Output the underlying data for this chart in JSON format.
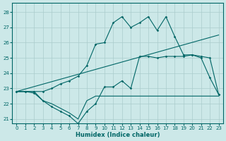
{
  "bg_color": "#cce8e8",
  "grid_color": "#aacccc",
  "line_color": "#006666",
  "xlabel": "Humidex (Indice chaleur)",
  "xlim": [
    -0.5,
    23.5
  ],
  "ylim": [
    20.7,
    28.6
  ],
  "xticks": [
    0,
    1,
    2,
    3,
    4,
    5,
    6,
    7,
    8,
    9,
    10,
    11,
    12,
    13,
    14,
    15,
    16,
    17,
    18,
    19,
    20,
    21,
    22,
    23
  ],
  "yticks": [
    21,
    22,
    23,
    24,
    25,
    26,
    27,
    28
  ],
  "line1_x": [
    0,
    1,
    2,
    3,
    4,
    5,
    6,
    7,
    8,
    9,
    10,
    11,
    12,
    13,
    14,
    15,
    16,
    17,
    18,
    19,
    20,
    21,
    22,
    23
  ],
  "line1_y": [
    22.8,
    22.8,
    22.8,
    22.2,
    22.0,
    21.7,
    21.4,
    21.0,
    22.2,
    22.5,
    22.5,
    22.5,
    22.5,
    22.5,
    22.5,
    22.5,
    22.5,
    22.5,
    22.5,
    22.5,
    22.5,
    22.5,
    22.5,
    22.5
  ],
  "line2_x": [
    0,
    1,
    2,
    3,
    4,
    5,
    6,
    7,
    8,
    9,
    10,
    11,
    12,
    13,
    14,
    15,
    16,
    17,
    18,
    19,
    20,
    21,
    22,
    23
  ],
  "line2_y": [
    22.8,
    22.8,
    22.7,
    22.2,
    21.8,
    21.5,
    21.2,
    20.7,
    21.5,
    22.0,
    23.1,
    23.1,
    23.5,
    23.0,
    25.1,
    25.1,
    25.0,
    25.1,
    25.1,
    25.1,
    25.2,
    25.0,
    23.7,
    22.6
  ],
  "line3_x": [
    0,
    23
  ],
  "line3_y": [
    22.8,
    26.5
  ],
  "line4_x": [
    0,
    1,
    2,
    3,
    4,
    5,
    6,
    7,
    8,
    9,
    10,
    11,
    12,
    13,
    14,
    15,
    16,
    17,
    18,
    19,
    20,
    21,
    22,
    23
  ],
  "line4_y": [
    22.8,
    22.8,
    22.8,
    22.8,
    23.0,
    23.3,
    23.5,
    23.8,
    24.5,
    25.9,
    26.0,
    27.3,
    27.7,
    27.0,
    27.3,
    27.7,
    26.8,
    27.7,
    26.4,
    25.2,
    25.2,
    25.1,
    25.0,
    22.6
  ]
}
